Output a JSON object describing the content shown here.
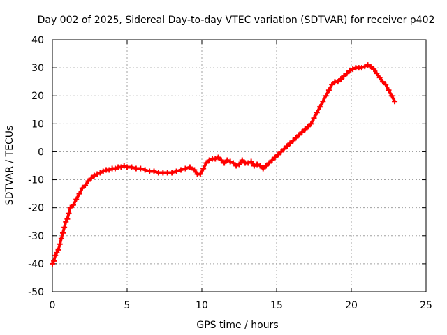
{
  "chart_data": {
    "type": "scatter",
    "title": "Day 002 of 2025, Sidereal Day-to-day VTEC variation (SDTVAR) for receiver p402",
    "xlabel": "GPS time / hours",
    "ylabel": "SDTVAR / TECUs",
    "xlim": [
      0,
      25
    ],
    "ylim": [
      -50,
      40
    ],
    "xticks": [
      0,
      5,
      10,
      15,
      20,
      25
    ],
    "yticks": [
      -50,
      -40,
      -30,
      -20,
      -10,
      0,
      10,
      20,
      30,
      40
    ],
    "grid": true,
    "marker": "+",
    "color": "#ff0000",
    "series": [
      {
        "name": "SDTVAR",
        "x": [
          0.0,
          0.1,
          0.2,
          0.3,
          0.4,
          0.5,
          0.6,
          0.7,
          0.8,
          0.9,
          1.0,
          1.1,
          1.2,
          1.4,
          1.6,
          1.8,
          2.0,
          2.2,
          2.4,
          2.6,
          2.8,
          3.0,
          3.2,
          3.4,
          3.6,
          3.8,
          4.0,
          4.2,
          4.4,
          4.6,
          4.8,
          5.0,
          5.3,
          5.6,
          5.9,
          6.2,
          6.5,
          6.8,
          7.1,
          7.4,
          7.7,
          8.0,
          8.3,
          8.6,
          8.9,
          9.2,
          9.5,
          9.7,
          9.9,
          10.1,
          10.3,
          10.5,
          10.7,
          10.9,
          11.1,
          11.3,
          11.5,
          11.7,
          11.9,
          12.1,
          12.3,
          12.5,
          12.7,
          12.9,
          13.1,
          13.3,
          13.5,
          13.7,
          13.9,
          14.1,
          14.3,
          14.5,
          14.7,
          14.9,
          15.1,
          15.3,
          15.5,
          15.7,
          15.9,
          16.1,
          16.3,
          16.5,
          16.7,
          16.9,
          17.1,
          17.3,
          17.5,
          17.7,
          17.9,
          18.1,
          18.3,
          18.5,
          18.7,
          18.9,
          19.1,
          19.3,
          19.5,
          19.7,
          19.9,
          20.1,
          20.3,
          20.5,
          20.7,
          20.9,
          21.1,
          21.3,
          21.5,
          21.7,
          21.9,
          22.1,
          22.3,
          22.5,
          22.7,
          22.9
        ],
        "y": [
          -40,
          -39,
          -37,
          -36,
          -35,
          -33,
          -31,
          -29,
          -27,
          -25,
          -24,
          -22,
          -20,
          -19,
          -17,
          -15,
          -13,
          -12,
          -10.5,
          -9.5,
          -8.5,
          -8,
          -7.5,
          -7,
          -6.5,
          -6.5,
          -6,
          -6,
          -5.5,
          -5.5,
          -5,
          -5.5,
          -5.5,
          -6,
          -6,
          -6.5,
          -7,
          -7,
          -7.5,
          -7.5,
          -7.5,
          -7.5,
          -7,
          -6.5,
          -6,
          -5.5,
          -6.5,
          -8,
          -8,
          -6,
          -4,
          -3,
          -2.5,
          -2.5,
          -2,
          -3,
          -4,
          -3,
          -3.5,
          -4,
          -5,
          -4.5,
          -3,
          -4,
          -4,
          -3.5,
          -5,
          -4.5,
          -5,
          -6,
          -5,
          -4,
          -3,
          -2,
          -1,
          0,
          1,
          2,
          3,
          4,
          5,
          6,
          7,
          8,
          9,
          10,
          12,
          14,
          16,
          18,
          20,
          22,
          24,
          25,
          25,
          26,
          27,
          28,
          29,
          29.5,
          30,
          30,
          30,
          30.5,
          31,
          30.5,
          29.5,
          28,
          26.5,
          25,
          24,
          22,
          20,
          18
        ]
      }
    ]
  }
}
